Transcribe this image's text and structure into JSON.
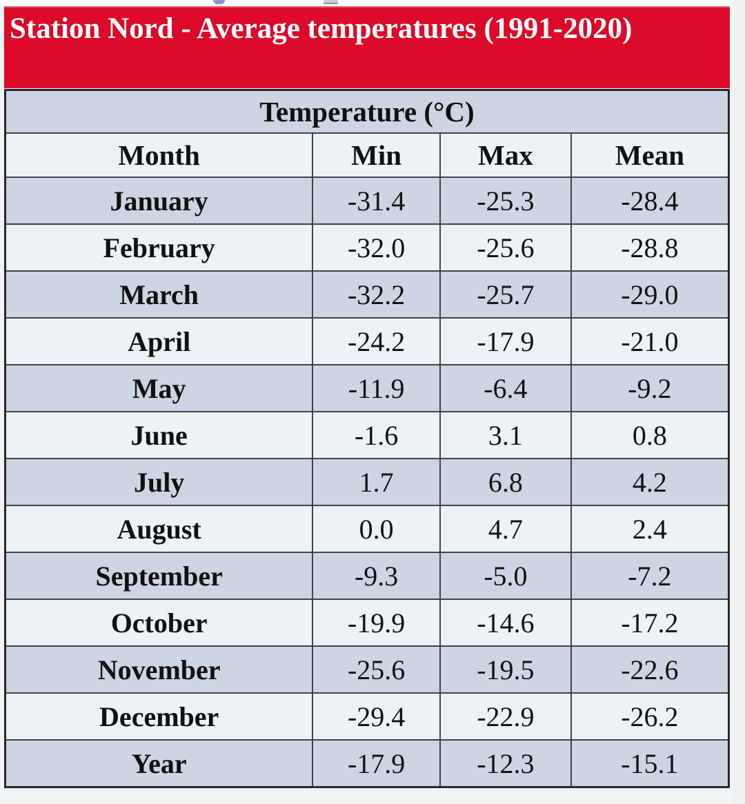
{
  "banner": {
    "title": "Station Nord - Average temperatures (1991-2020)"
  },
  "table": {
    "title": "Temperature (°C)",
    "columns": [
      "Month",
      "Min",
      "Max",
      "Mean"
    ],
    "rows": [
      {
        "month": "January",
        "min": "-31.4",
        "max": "-25.3",
        "mean": "-28.4"
      },
      {
        "month": "February",
        "min": "-32.0",
        "max": "-25.6",
        "mean": "-28.8"
      },
      {
        "month": "March",
        "min": "-32.2",
        "max": "-25.7",
        "mean": "-29.0"
      },
      {
        "month": "April",
        "min": "-24.2",
        "max": "-17.9",
        "mean": "-21.0"
      },
      {
        "month": "May",
        "min": "-11.9",
        "max": "-6.4",
        "mean": "-9.2"
      },
      {
        "month": "June",
        "min": "-1.6",
        "max": "3.1",
        "mean": "0.8"
      },
      {
        "month": "July",
        "min": "1.7",
        "max": "6.8",
        "mean": "4.2"
      },
      {
        "month": "August",
        "min": "0.0",
        "max": "4.7",
        "mean": "2.4"
      },
      {
        "month": "September",
        "min": "-9.3",
        "max": "-5.0",
        "mean": "-7.2"
      },
      {
        "month": "October",
        "min": "-19.9",
        "max": "-14.6",
        "mean": "-17.2"
      },
      {
        "month": "November",
        "min": "-25.6",
        "max": "-19.5",
        "mean": "-22.6"
      },
      {
        "month": "December",
        "min": "-29.4",
        "max": "-22.9",
        "mean": "-26.2"
      },
      {
        "month": "Year",
        "min": "-17.9",
        "max": "-12.3",
        "mean": "-15.1"
      }
    ]
  },
  "colors": {
    "banner_bg": "#db0a29",
    "banner_text": "#ffffff",
    "row_dark": "#cdd5e4",
    "row_light": "#edf2f6",
    "grid_border": "#3f4347",
    "outer_border": "#26282b",
    "page_bg": "#f2f3f4"
  }
}
